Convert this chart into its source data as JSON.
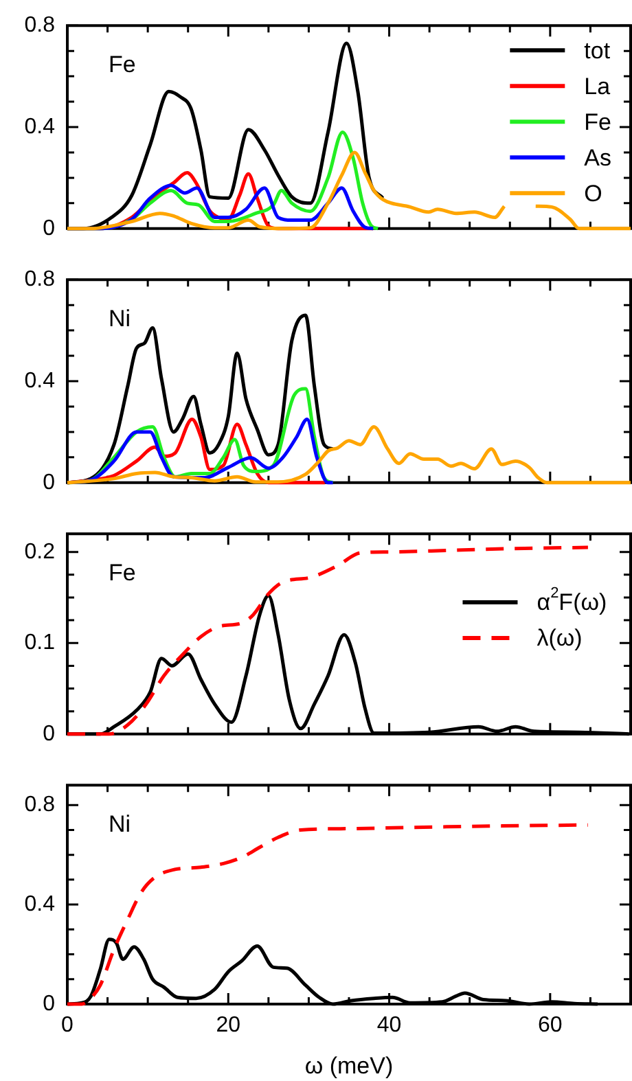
{
  "chart_data": [
    {
      "type": "line",
      "annotations": [
        "Fe"
      ],
      "legend": "top right",
      "tick_labels": "y",
      "xlim": [
        0,
        70
      ],
      "xticks": [
        0,
        {
          "value": 5,
          "label": null
        },
        {
          "value": 10,
          "label": null
        },
        {
          "value": 15,
          "label": null
        },
        20,
        {
          "value": 25,
          "label": null
        },
        {
          "value": 30,
          "label": null
        },
        {
          "value": 35,
          "label": null
        },
        40,
        {
          "value": 45,
          "label": null
        },
        {
          "value": 50,
          "label": null
        },
        {
          "value": 55,
          "label": null
        },
        60,
        {
          "value": 65,
          "label": null
        }
      ],
      "ylim": [
        0,
        0.8
      ],
      "yticks": [
        0,
        {
          "value": 0.1,
          "label": null
        },
        {
          "value": 0.2,
          "label": null
        },
        {
          "value": 0.3,
          "label": null
        },
        0.4,
        {
          "value": 0.5,
          "label": null
        },
        {
          "value": 0.6,
          "label": null
        },
        {
          "value": 0.7,
          "label": null
        },
        0.8
      ],
      "series": [
        {
          "name": "tot",
          "color": "#000000",
          "x": [
            0,
            2,
            5.5,
            8,
            10.3,
            12.6,
            14,
            15.4,
            16.6,
            17.7,
            20,
            22.5,
            24.5,
            26.2,
            27.9,
            30.2,
            32.4,
            34.7,
            36.1,
            37.5,
            39.2
          ],
          "values": [
            0,
            0,
            0.044,
            0.13,
            0.33,
            0.54,
            0.52,
            0.47,
            0.31,
            0.125,
            0.12,
            0.39,
            0.31,
            0.21,
            0.125,
            0.1,
            0.38,
            0.73,
            0.54,
            0.2,
            0.12
          ]
        },
        {
          "name": "La",
          "color": "#ff0000",
          "x": [
            0,
            4,
            8,
            10.9,
            13.2,
            14.9,
            16,
            17.7,
            18.8,
            20,
            21.4,
            22.5,
            23.6,
            25,
            26.2,
            38
          ],
          "values": [
            0,
            0,
            0.044,
            0.13,
            0.18,
            0.22,
            0.18,
            0.07,
            0.044,
            0.036,
            0.13,
            0.215,
            0.12,
            0.01,
            0,
            0
          ]
        },
        {
          "name": "Fe",
          "color": "#22ee22",
          "x": [
            0,
            4,
            8,
            10.3,
            12.9,
            14.9,
            16.3,
            18.3,
            20,
            23.4,
            25.6,
            26.6,
            27.9,
            30.2,
            32.4,
            34.2,
            35.5,
            36.7,
            37.8,
            38.6
          ],
          "values": [
            0,
            0,
            0.036,
            0.1,
            0.15,
            0.1,
            0.093,
            0.028,
            0.028,
            0.06,
            0.093,
            0.15,
            0.1,
            0.068,
            0.2,
            0.38,
            0.28,
            0.1,
            0.01,
            0
          ]
        },
        {
          "name": "As",
          "color": "#0000ff",
          "x": [
            0,
            4,
            8,
            10.3,
            12.9,
            14.6,
            16.1,
            18.3,
            20,
            22.2,
            24.5,
            26.2,
            27.9,
            30.2,
            32.4,
            34.1,
            35.5,
            37,
            38
          ],
          "values": [
            0,
            0,
            0.036,
            0.12,
            0.17,
            0.14,
            0.16,
            0.044,
            0.044,
            0.076,
            0.16,
            0.044,
            0.033,
            0.033,
            0.1,
            0.16,
            0.07,
            0.005,
            0
          ]
        },
        {
          "name": "O",
          "color": "#ffa500",
          "x": [
            0,
            2.9,
            8,
            11.5,
            13.2,
            15.4,
            18.3,
            20,
            22.5,
            23.9,
            26.8,
            30.2,
            32.4,
            34.1,
            35.7,
            37,
            38.1,
            39.2,
            42.6,
            44.9,
            46,
            48.3,
            50.6,
            53.1,
            54.3,
            55.5,
            57.5,
            58.2,
            60.2,
            62.5,
            63.6,
            70
          ],
          "values": [
            0,
            0,
            0.028,
            0.06,
            0.05,
            0.02,
            0.003,
            0.003,
            0.033,
            0.007,
            0,
            0.003,
            0.1,
            0.21,
            0.3,
            0.22,
            0.15,
            0.115,
            0.085,
            0.065,
            0.076,
            0.06,
            0.065,
            0.044,
            0.088,
            null,
            null,
            0.088,
            0.085,
            0.036,
            0,
            0
          ]
        }
      ]
    },
    {
      "type": "line",
      "annotations": [
        "Ni"
      ],
      "tick_labels": "y",
      "xlim": [
        0,
        70
      ],
      "xticks": [
        0,
        {
          "value": 5,
          "label": null
        },
        {
          "value": 10,
          "label": null
        },
        {
          "value": 15,
          "label": null
        },
        20,
        {
          "value": 25,
          "label": null
        },
        {
          "value": 30,
          "label": null
        },
        {
          "value": 35,
          "label": null
        },
        40,
        {
          "value": 45,
          "label": null
        },
        {
          "value": 50,
          "label": null
        },
        {
          "value": 55,
          "label": null
        },
        60,
        {
          "value": 65,
          "label": null
        }
      ],
      "ylim": [
        0,
        0.8
      ],
      "yticks": [
        0,
        {
          "value": 0.1,
          "label": null
        },
        {
          "value": 0.2,
          "label": null
        },
        {
          "value": 0.3,
          "label": null
        },
        0.4,
        {
          "value": 0.5,
          "label": null
        },
        {
          "value": 0.6,
          "label": null
        },
        {
          "value": 0.7,
          "label": null
        },
        0.8
      ],
      "series": [
        {
          "color": "#000000",
          "x": [
            0,
            2.9,
            5.8,
            7.5,
            8.6,
            9.6,
            10.6,
            11.7,
            13.2,
            14.3,
            15.7,
            16.6,
            17.7,
            18.8,
            20,
            21.1,
            22.2,
            23.6,
            25,
            26.2,
            27.9,
            29.6,
            30.7,
            31.9,
            33
          ],
          "values": [
            0,
            0.016,
            0.15,
            0.38,
            0.53,
            0.55,
            0.61,
            0.41,
            0.2,
            0.25,
            0.34,
            0.23,
            0.117,
            0.15,
            0.26,
            0.51,
            0.33,
            0.21,
            0.11,
            0.15,
            0.56,
            0.66,
            0.38,
            0.15,
            0.133
          ]
        },
        {
          "color": "#ff0000",
          "x": [
            0,
            2.9,
            5.8,
            8.6,
            10.9,
            12,
            13.4,
            15.5,
            16.6,
            17.7,
            19.4,
            21.1,
            22.2,
            23.6,
            25,
            32
          ],
          "values": [
            0,
            0.01,
            0.028,
            0.085,
            0.14,
            0.104,
            0.117,
            0.25,
            0.18,
            0.052,
            0.068,
            0.23,
            0.15,
            0.036,
            0,
            0
          ]
        },
        {
          "color": "#22ee22",
          "x": [
            0,
            2.9,
            5.8,
            8.6,
            10.6,
            12,
            13.4,
            15.4,
            17.7,
            19.4,
            20.8,
            21.9,
            23.4,
            25.6,
            28.2,
            29.6,
            30.7,
            31.9,
            33
          ],
          "values": [
            0,
            0.01,
            0.1,
            0.2,
            0.22,
            0.1,
            0.023,
            0.036,
            0.036,
            0.1,
            0.17,
            0.068,
            0.044,
            0.068,
            0.345,
            0.37,
            0.18,
            0.02,
            0
          ]
        },
        {
          "color": "#0000ff",
          "x": [
            0,
            2.9,
            5.8,
            8.6,
            10.3,
            11.7,
            13.2,
            17.1,
            20,
            22.8,
            25,
            26.8,
            28.5,
            29.8,
            31,
            32.4,
            33
          ],
          "values": [
            0,
            0.01,
            0.085,
            0.2,
            0.2,
            0.1,
            0.023,
            0.02,
            0.06,
            0.098,
            0.057,
            0.1,
            0.18,
            0.25,
            0.1,
            0,
            0
          ]
        },
        {
          "color": "#ffa500",
          "x": [
            0,
            5.8,
            8.6,
            10.9,
            13.2,
            15.4,
            18.3,
            21.1,
            23.4,
            26.2,
            29.6,
            31.3,
            32.4,
            33.6,
            35,
            36.4,
            38.1,
            39.8,
            41.2,
            42.6,
            44.3,
            46,
            47.7,
            48.9,
            50.6,
            52.7,
            54,
            55.7,
            57.4,
            58.5,
            59.6,
            70
          ],
          "values": [
            0,
            0.016,
            0.036,
            0.04,
            0.023,
            0.02,
            0.007,
            0.023,
            0.003,
            0.003,
            0.033,
            0.085,
            0.125,
            0.137,
            0.165,
            0.15,
            0.22,
            0.133,
            0.076,
            0.114,
            0.093,
            0.093,
            0.065,
            0.076,
            0.055,
            0.133,
            0.072,
            0.085,
            0.06,
            0.02,
            0,
            0
          ]
        }
      ]
    },
    {
      "type": "line",
      "annotations": [
        "Fe"
      ],
      "legend": "right",
      "tick_labels": "y",
      "xlim": [
        0,
        70
      ],
      "xticks": [
        0,
        {
          "value": 5,
          "label": null
        },
        {
          "value": 10,
          "label": null
        },
        {
          "value": 15,
          "label": null
        },
        20,
        {
          "value": 25,
          "label": null
        },
        {
          "value": 30,
          "label": null
        },
        {
          "value": 35,
          "label": null
        },
        40,
        {
          "value": 45,
          "label": null
        },
        {
          "value": 50,
          "label": null
        },
        {
          "value": 55,
          "label": null
        },
        60,
        {
          "value": 65,
          "label": null
        }
      ],
      "ylim": [
        0,
        0.22
      ],
      "yticks": [
        0,
        {
          "value": 0.025,
          "label": null
        },
        {
          "value": 0.05,
          "label": null
        },
        {
          "value": 0.075,
          "label": null
        },
        0.1,
        {
          "value": 0.125,
          "label": null
        },
        {
          "value": 0.15,
          "label": null
        },
        {
          "value": 0.175,
          "label": null
        },
        0.2
      ],
      "series": [
        {
          "name": "α$^{2}$F(ω)",
          "color": "#000000",
          "line_style": "solid",
          "x": [
            0,
            4.1,
            5.8,
            8.6,
            10.3,
            11.7,
            13,
            15,
            16.6,
            18.3,
            20.4,
            22.2,
            23.9,
            25,
            26.2,
            27.6,
            29,
            30.7,
            32.4,
            34.4,
            35.8,
            37,
            38.1,
            45,
            51.1,
            53.4,
            55.7,
            58,
            63.6,
            69.8
          ],
          "values": [
            0,
            0,
            0.008,
            0.026,
            0.046,
            0.083,
            0.075,
            0.088,
            0.06,
            0.033,
            0.013,
            0.064,
            0.131,
            0.152,
            0.109,
            0.037,
            0.006,
            0.033,
            0.064,
            0.109,
            0.078,
            0.028,
            0.001,
            0.002,
            0.008,
            0.003,
            0.008,
            0.003,
            0.002,
            0
          ]
        },
        {
          "name": "λ(ω)",
          "color": "#ff0000",
          "line_style": "dashed",
          "x": [
            0,
            5.2,
            7.5,
            9.8,
            12,
            14.3,
            16.6,
            18.8,
            21.7,
            23.1,
            25,
            26.8,
            30.2,
            33.6,
            36.4,
            39.8,
            48.3,
            56.8,
            64.7
          ],
          "values": [
            0,
            0,
            0.01,
            0.033,
            0.064,
            0.087,
            0.107,
            0.118,
            0.122,
            0.131,
            0.154,
            0.167,
            0.172,
            0.185,
            0.199,
            0.2,
            0.202,
            0.204,
            0.205
          ]
        }
      ]
    },
    {
      "type": "line",
      "annotations": [
        "Ni"
      ],
      "xlabel": "ω (meV)",
      "xlim": [
        0,
        70
      ],
      "xticks": [
        0,
        {
          "value": 5,
          "label": null
        },
        {
          "value": 10,
          "label": null
        },
        {
          "value": 15,
          "label": null
        },
        20,
        {
          "value": 25,
          "label": null
        },
        {
          "value": 30,
          "label": null
        },
        {
          "value": 35,
          "label": null
        },
        40,
        {
          "value": 45,
          "label": null
        },
        {
          "value": 50,
          "label": null
        },
        {
          "value": 55,
          "label": null
        },
        60,
        {
          "value": 65,
          "label": null
        }
      ],
      "ylim": [
        0,
        0.88
      ],
      "yticks": [
        0,
        {
          "value": 0.1,
          "label": null
        },
        {
          "value": 0.2,
          "label": null
        },
        {
          "value": 0.3,
          "label": null
        },
        0.4,
        {
          "value": 0.5,
          "label": null
        },
        {
          "value": 0.6,
          "label": null
        },
        {
          "value": 0.7,
          "label": null
        },
        0.8
      ],
      "series": [
        {
          "color": "#000000",
          "line_style": "solid",
          "x": [
            0,
            1.8,
            2.9,
            4.1,
            5.2,
            6.1,
            6.9,
            8.3,
            9.5,
            10.6,
            12,
            13.7,
            16,
            18.3,
            20,
            21.7,
            23.6,
            25.6,
            27.3,
            29.6,
            31.3,
            33,
            35.3,
            38.1,
            40.4,
            42.6,
            46.6,
            48.3,
            49.4,
            51.7,
            54.5,
            57.4,
            60.2,
            63,
            65.9
          ],
          "values": [
            0,
            0.005,
            0.03,
            0.14,
            0.26,
            0.245,
            0.18,
            0.23,
            0.18,
            0.1,
            0.068,
            0.027,
            0.023,
            0.059,
            0.13,
            0.174,
            0.233,
            0.148,
            0.144,
            0.076,
            0.027,
            0,
            0.014,
            0.023,
            0.027,
            0.005,
            0.009,
            0.032,
            0.044,
            0.018,
            0.014,
            0,
            0.009,
            0.002,
            0
          ]
        },
        {
          "color": "#ff0000",
          "line_style": "dashed",
          "x": [
            0,
            1.8,
            2.9,
            4.1,
            5.8,
            7.5,
            9.2,
            10.9,
            13.2,
            16.6,
            19.4,
            21.7,
            23.9,
            26.2,
            29,
            34.7,
            42.6,
            54,
            64.7
          ],
          "values": [
            0,
            0,
            0.023,
            0.076,
            0.22,
            0.34,
            0.45,
            0.51,
            0.54,
            0.55,
            0.565,
            0.59,
            0.63,
            0.67,
            0.7,
            0.705,
            0.71,
            0.716,
            0.72
          ]
        }
      ]
    }
  ]
}
